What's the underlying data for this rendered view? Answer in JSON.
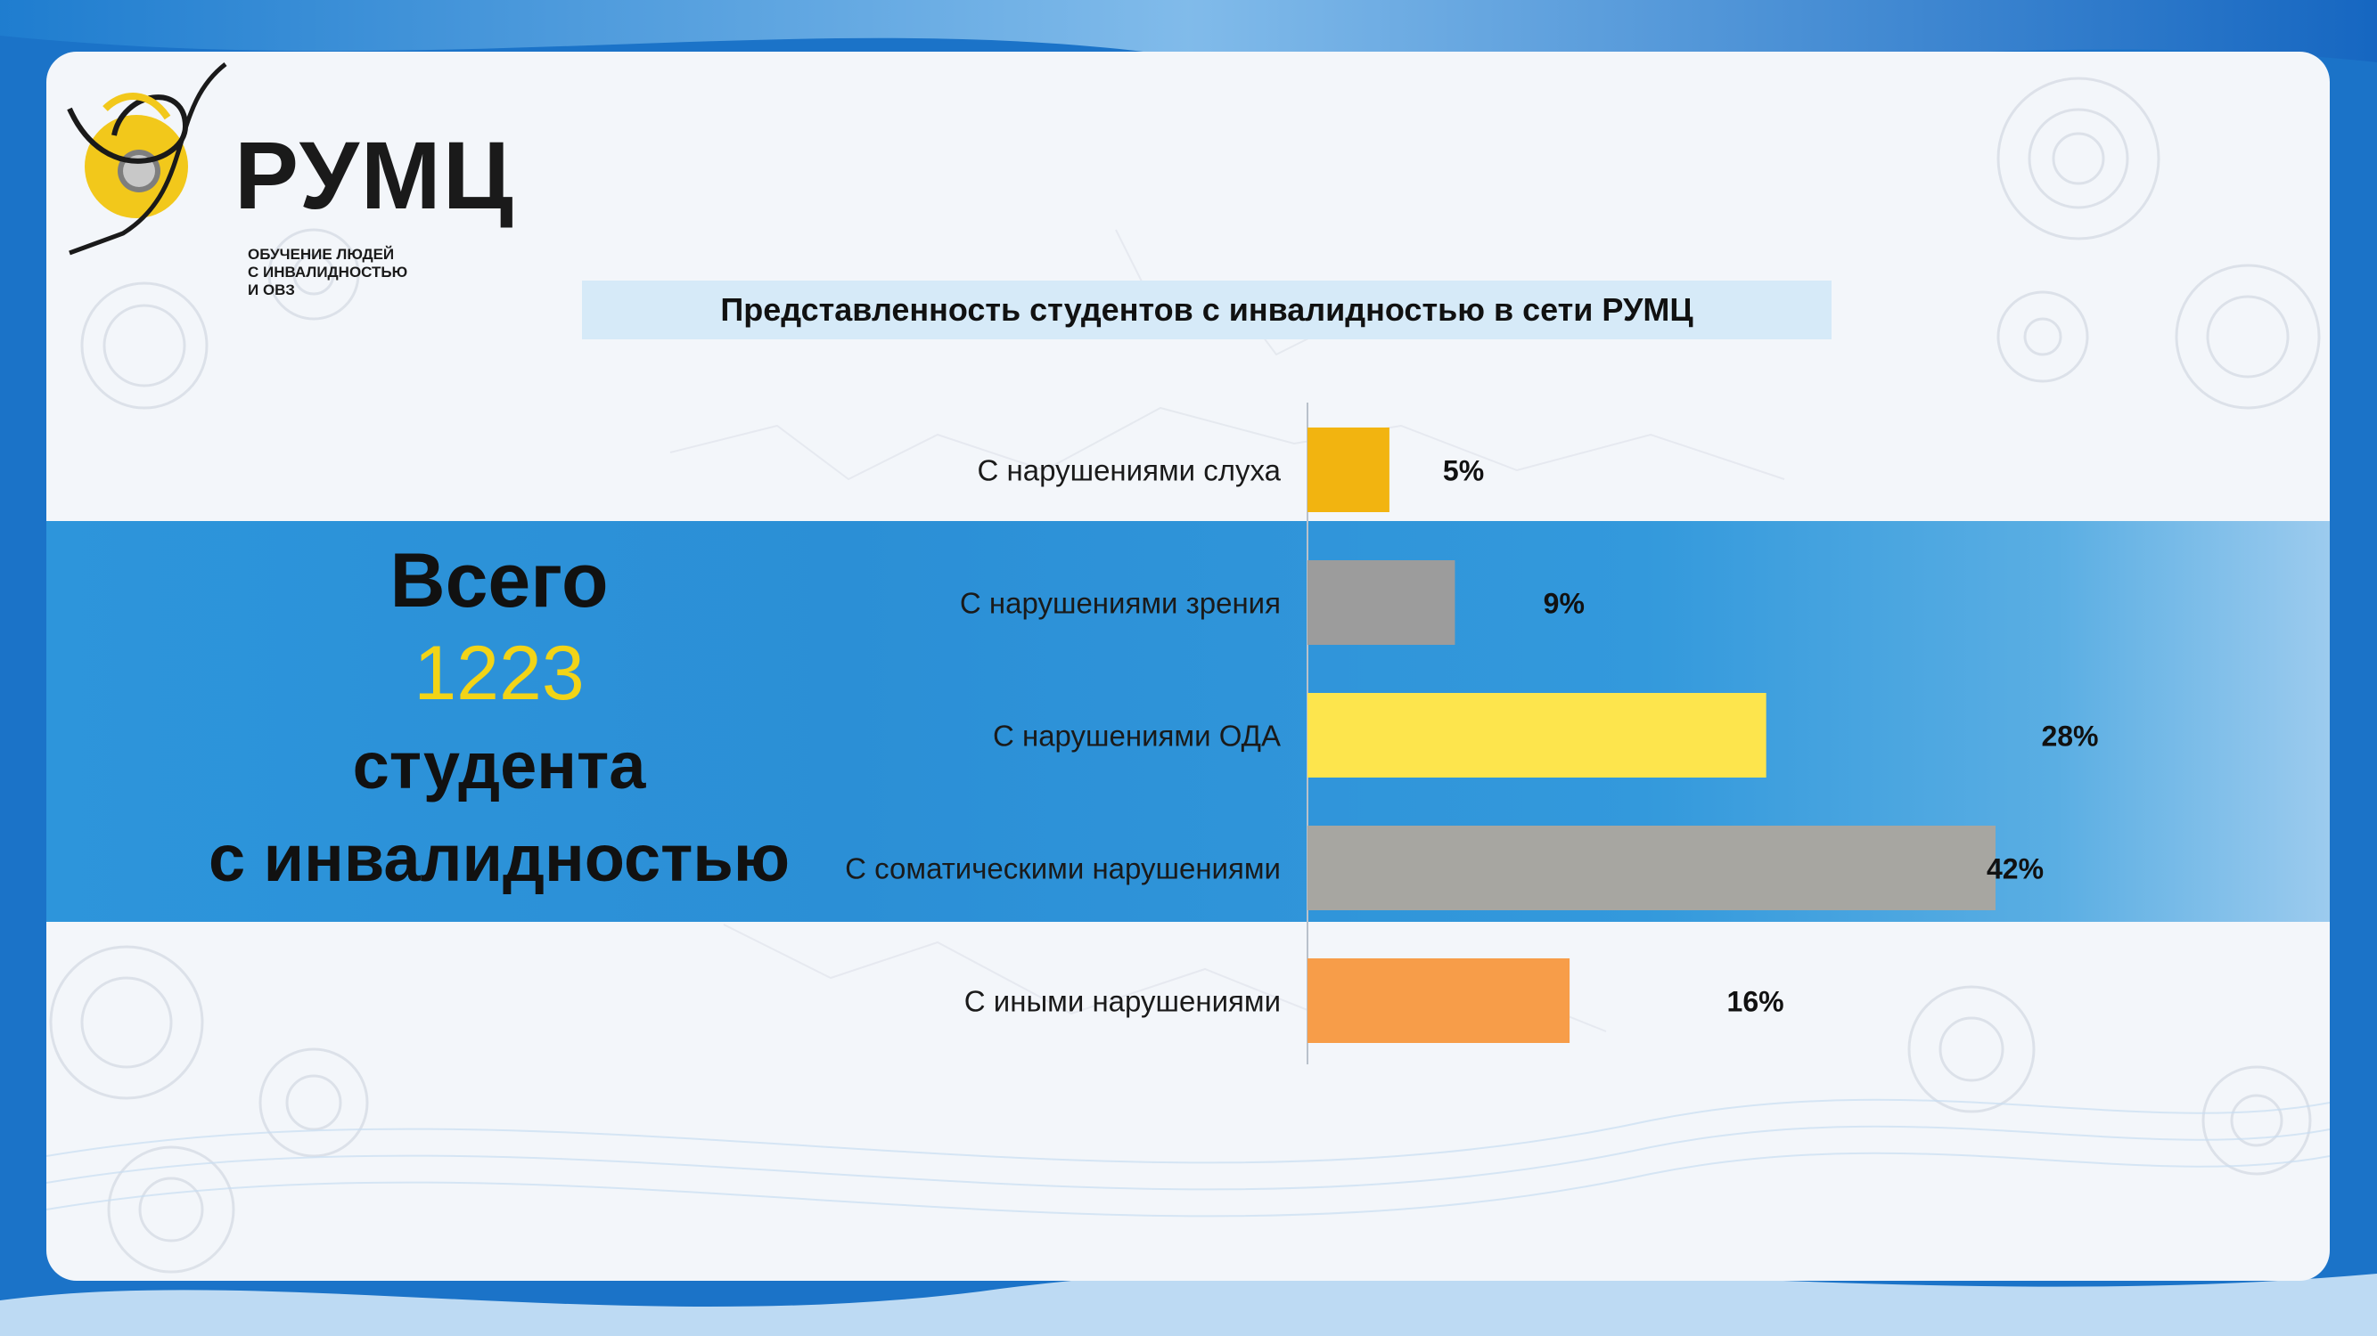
{
  "logo": {
    "name": "РУМЦ",
    "subtitle_line1": "ОБУЧЕНИЕ ЛЮДЕЙ",
    "subtitle_line2": "С ИНВАЛИДНОСТЬЮ И ОВЗ"
  },
  "summary": {
    "label_top": "Всего",
    "number": "1223",
    "label_mid": "студента",
    "label_bottom": "с инвалидностью"
  },
  "chart_data": {
    "type": "bar",
    "orientation": "horizontal",
    "title": "Представленность студентов с инвалидностью в сети РУМЦ",
    "categories": [
      "С нарушениями слуха",
      "С нарушениями зрения",
      "С нарушениями ОДА",
      "С соматическими нарушениями",
      "С иными нарушениями"
    ],
    "values": [
      5,
      9,
      28,
      42,
      16
    ],
    "value_labels": [
      "5%",
      "9%",
      "28%",
      "42%",
      "16%"
    ],
    "colors": [
      "#f2b410",
      "#9c9c9c",
      "#fde54d",
      "#a7a6a1",
      "#f79d49"
    ],
    "xlim": [
      0,
      42
    ],
    "grid": false,
    "legend": "none"
  }
}
